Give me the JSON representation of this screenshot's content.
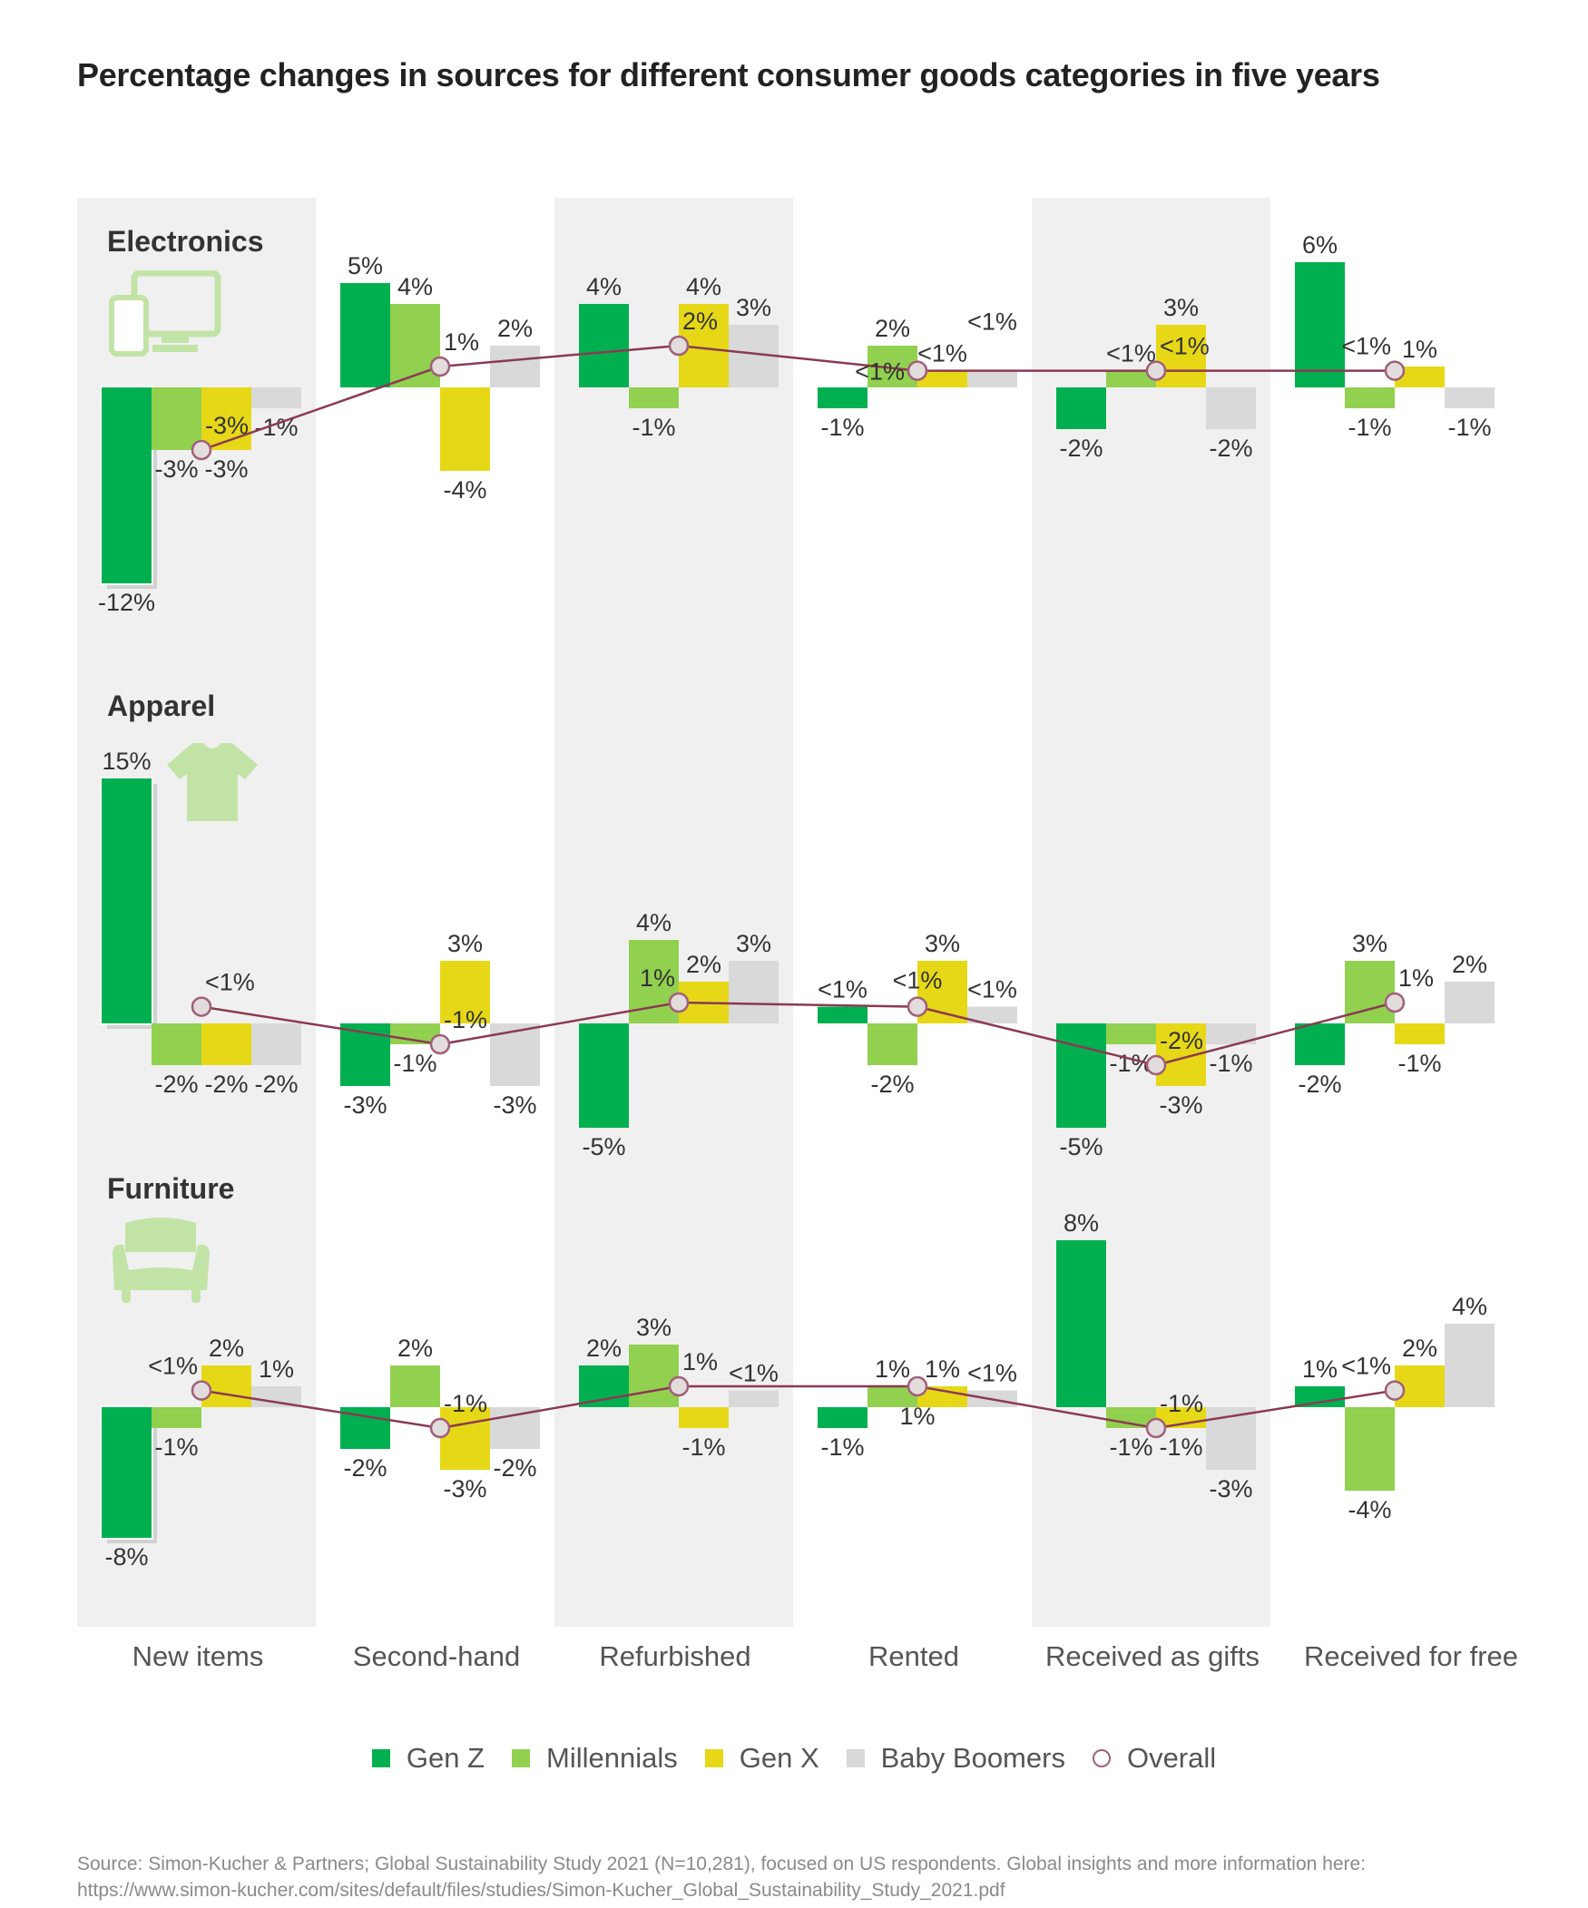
{
  "chart_data": {
    "type": "bar",
    "title": "Percentage changes in sources for different consumer goods categories in five years",
    "categories": [
      "New items",
      "Second-hand",
      "Refurbished",
      "Rented",
      "Received as gifts",
      "Received for free"
    ],
    "legend": {
      "placement": "bottom",
      "entries": [
        "Gen Z",
        "Millennials",
        "Gen X",
        "Baby Boomers",
        "Overall"
      ]
    },
    "colors": {
      "Gen Z": "#00b050",
      "Millennials": "#92d050",
      "Gen X": "#e6d817",
      "Baby Boomers": "#d9d9d9",
      "Overall": "#8b3a52",
      "band": "#f0f0f0",
      "icon": "#c2e3a6"
    },
    "panels": [
      {
        "name": "Electronics",
        "icon": "devices-icon",
        "series": [
          {
            "name": "Gen Z",
            "values": [
              -12,
              5,
              4,
              -1,
              -2,
              6
            ],
            "labels": [
              "-12%",
              "5%",
              "4%",
              "-1%",
              "-2%",
              "6%"
            ]
          },
          {
            "name": "Millennials",
            "values": [
              -3,
              4,
              -1,
              2,
              0.8,
              -1
            ],
            "labels": [
              "-3%",
              "4%",
              "-1%",
              "2%",
              "<1%",
              "-1%"
            ]
          },
          {
            "name": "Gen X",
            "values": [
              -3,
              -4,
              4,
              0.8,
              3,
              1
            ],
            "labels": [
              "-3%",
              "-4%",
              "4%",
              "<1%",
              "3%",
              "1%"
            ]
          },
          {
            "name": "Baby Boomers",
            "values": [
              -1,
              2,
              3,
              0.8,
              -2,
              -1
            ],
            "labels": [
              "-1%",
              "2%",
              "3%",
              "<1%",
              "-2%",
              "-1%"
            ]
          }
        ],
        "overall": {
          "values": [
            -3,
            1,
            2,
            0.8,
            0.8,
            0.8
          ],
          "labels": [
            "-3%",
            "1%",
            "2%",
            "<1%",
            "<1%",
            "<1%"
          ]
        }
      },
      {
        "name": "Apparel",
        "icon": "tshirt-icon",
        "series": [
          {
            "name": "Gen Z",
            "values": [
              15,
              -3,
              -5,
              0.8,
              -5,
              -2
            ],
            "labels": [
              "15%",
              "-3%",
              "-5%",
              "<1%",
              "-5%",
              "-2%"
            ]
          },
          {
            "name": "Millennials",
            "values": [
              -2,
              -1,
              4,
              -2,
              -1,
              3
            ],
            "labels": [
              "-2%",
              "-1%",
              "4%",
              "-2%",
              "-1%",
              "3%"
            ]
          },
          {
            "name": "Gen X",
            "values": [
              -2,
              3,
              2,
              3,
              -3,
              -1
            ],
            "labels": [
              "-2%",
              "3%",
              "2%",
              "3%",
              "-3%",
              "-1%"
            ]
          },
          {
            "name": "Baby Boomers",
            "values": [
              -2,
              -3,
              3,
              0.8,
              -1,
              2
            ],
            "labels": [
              "-2%",
              "-3%",
              "3%",
              "<1%",
              "-1%",
              "2%"
            ]
          }
        ],
        "overall": {
          "values": [
            0.8,
            -1,
            1,
            0.8,
            -2,
            1
          ],
          "labels": [
            "<1%",
            "-1%",
            "1%",
            "<1%",
            "-2%",
            "1%"
          ]
        }
      },
      {
        "name": "Furniture",
        "icon": "armchair-icon",
        "series": [
          {
            "name": "Gen Z",
            "values": [
              -8,
              -2,
              2,
              -1,
              8,
              1
            ],
            "labels": [
              "-8%",
              "-2%",
              "2%",
              "-1%",
              "8%",
              "1%"
            ]
          },
          {
            "name": "Millennials",
            "values": [
              -1,
              2,
              3,
              1,
              -1,
              -4
            ],
            "labels": [
              "-1%",
              "2%",
              "3%",
              "1%",
              "-1%",
              "-4%"
            ]
          },
          {
            "name": "Gen X",
            "values": [
              2,
              -3,
              -1,
              1,
              -1,
              2
            ],
            "labels": [
              "2%",
              "-3%",
              "-1%",
              "1%",
              "-1%",
              "2%"
            ]
          },
          {
            "name": "Baby Boomers",
            "values": [
              1,
              -2,
              0.8,
              0.8,
              -3,
              4
            ],
            "labels": [
              "1%",
              "-2%",
              "<1%",
              "<1%",
              "-3%",
              "4%"
            ]
          }
        ],
        "overall": {
          "values": [
            0.8,
            -1,
            1,
            1,
            -1,
            0.8
          ],
          "labels": [
            "<1%",
            "-1%",
            "1%",
            "1%",
            "-1%",
            "<1%"
          ]
        }
      }
    ]
  },
  "source": {
    "line1": "Source: Simon-Kucher & Partners; Global Sustainability Study 2021 (N=10,281), focused on US respondents. Global insights and more information here:",
    "line2": "https://www.simon-kucher.com/sites/default/files/studies/Simon-Kucher_Global_Sustainability_Study_2021.pdf"
  }
}
